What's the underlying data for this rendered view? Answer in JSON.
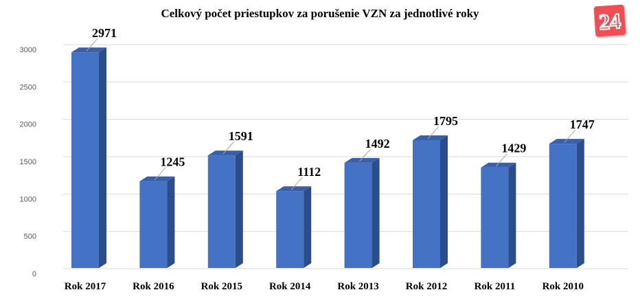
{
  "chart_data": {
    "type": "bar",
    "title": "Celkový počet priestupkov za porušenie VZN za jednotlivé roky",
    "categories": [
      "Rok 2017",
      "Rok 2016",
      "Rok 2015",
      "Rok 2014",
      "Rok 2013",
      "Rok 2012",
      "Rok 2011",
      "Rok 2010"
    ],
    "values": [
      2971,
      1245,
      1591,
      1112,
      1492,
      1795,
      1429,
      1747
    ],
    "yticks": [
      0,
      500,
      1000,
      1500,
      2000,
      2500,
      3000
    ],
    "ylim": [
      0,
      3000
    ],
    "grid": true,
    "bar_color": "#4472c4",
    "bar_side_color": "#2c4d8c",
    "bar_top_color": "#3960a8"
  },
  "logo": {
    "text": "24",
    "color": "#ef4e55",
    "icon": "24-logo-icon"
  }
}
